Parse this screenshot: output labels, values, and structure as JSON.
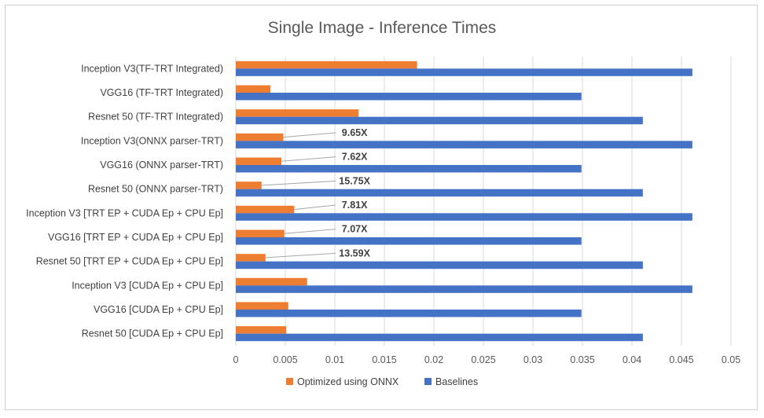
{
  "chart_data": {
    "type": "bar",
    "orientation": "horizontal",
    "title": "Single Image - Inference Times",
    "xlabel": "",
    "ylabel": "",
    "xlim": [
      0,
      0.05
    ],
    "x_ticks": [
      "0",
      "0.005",
      "0.01",
      "0.015",
      "0.02",
      "0.025",
      "0.03",
      "0.035",
      "0.04",
      "0.045",
      "0.05"
    ],
    "x_tick_values": [
      0,
      0.005,
      0.01,
      0.015,
      0.02,
      0.025,
      0.03,
      0.035,
      0.04,
      0.045,
      0.05
    ],
    "grid": true,
    "legend_position": "bottom",
    "categories": [
      "Inception V3(TF-TRT Integrated)",
      "VGG16 (TF-TRT Integrated)",
      "Resnet 50 (TF-TRT Integrated)",
      "Inception V3(ONNX parser-TRT)",
      "VGG16 (ONNX parser-TRT)",
      "Resnet 50 (ONNX parser-TRT)",
      "Inception V3 [TRT EP + CUDA Ep + CPU Ep]",
      "VGG16 [TRT EP + CUDA Ep + CPU Ep]",
      "Resnet 50 [TRT EP + CUDA Ep + CPU Ep]",
      "Inception V3 [CUDA Ep + CPU Ep]",
      "VGG16 [CUDA Ep + CPU Ep]",
      "Resnet 50 [CUDA Ep + CPU Ep]"
    ],
    "series": [
      {
        "name": "Optimized using ONNX",
        "color": "#ED7D31",
        "values": [
          0.0183,
          0.0035,
          0.0124,
          0.0048,
          0.0046,
          0.0026,
          0.0059,
          0.0049,
          0.003,
          0.0072,
          0.0053,
          0.0051
        ]
      },
      {
        "name": "Baselines",
        "color": "#4472C4",
        "values": [
          0.0461,
          0.0349,
          0.0411,
          0.0461,
          0.0349,
          0.0411,
          0.0461,
          0.0349,
          0.0411,
          0.0461,
          0.0349,
          0.0411
        ]
      }
    ],
    "annotations": [
      {
        "category_index": 3,
        "text": "9.65X"
      },
      {
        "category_index": 4,
        "text": "7.62X"
      },
      {
        "category_index": 5,
        "text": "15.75X"
      },
      {
        "category_index": 6,
        "text": "7.81X"
      },
      {
        "category_index": 7,
        "text": "7.07X"
      },
      {
        "category_index": 8,
        "text": "13.59X"
      }
    ],
    "colors": {
      "gridline": "#D9D9D9",
      "leader_line": "#A6A6A6"
    }
  }
}
